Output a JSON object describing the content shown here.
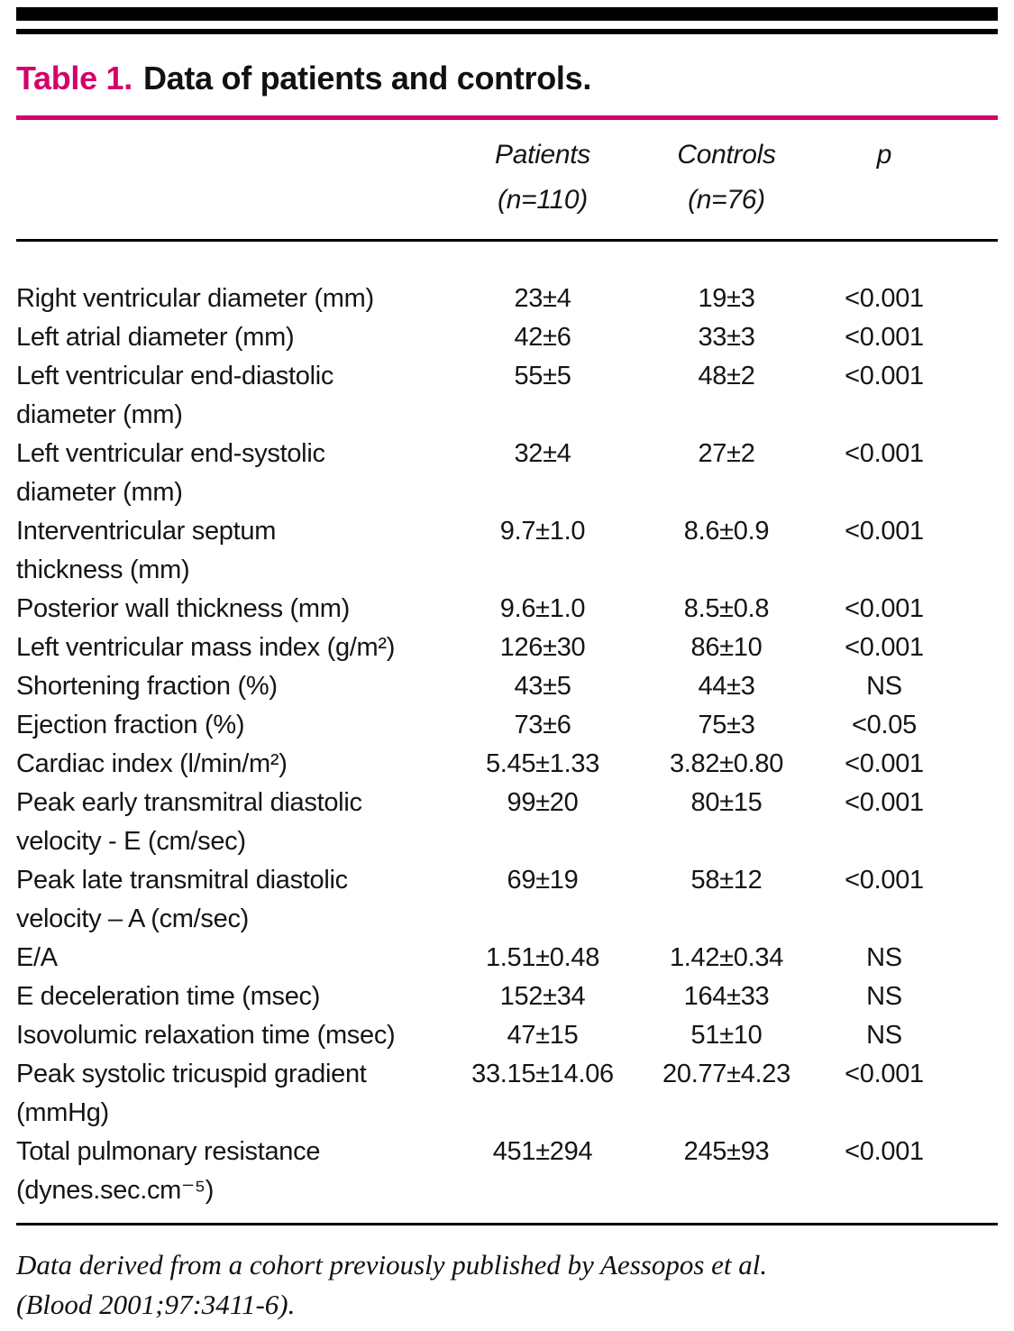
{
  "page": {
    "background_color": "#ffffff",
    "accent_color": "#d4006b",
    "text_color": "#151515"
  },
  "title": {
    "label": "Table 1.",
    "text": "Data of patients and controls."
  },
  "chart_data": {
    "type": "table",
    "title": "Table 1. Data of patients and controls.",
    "columns": [
      {
        "name": "Patients",
        "sub": "(n=110)"
      },
      {
        "name": "Controls",
        "sub": "(n=76)"
      },
      {
        "name": "p",
        "sub": ""
      }
    ],
    "rows": [
      {
        "label": "Right ventricular diameter (mm)",
        "patients": "23±4",
        "controls": "19±3",
        "p": "<0.001"
      },
      {
        "label": "Left atrial diameter (mm)",
        "patients": "42±6",
        "controls": "33±3",
        "p": "<0.001"
      },
      {
        "label": "Left ventricular end-diastolic\ndiameter (mm)",
        "patients": "55±5",
        "controls": "48±2",
        "p": "<0.001"
      },
      {
        "label": "Left ventricular end-systolic\ndiameter (mm)",
        "patients": "32±4",
        "controls": "27±2",
        "p": "<0.001"
      },
      {
        "label": "Interventricular septum\nthickness (mm)",
        "patients": "9.7±1.0",
        "controls": "8.6±0.9",
        "p": "<0.001"
      },
      {
        "label": "Posterior wall thickness (mm)",
        "patients": "9.6±1.0",
        "controls": "8.5±0.8",
        "p": "<0.001"
      },
      {
        "label": "Left ventricular mass index (g/m²)",
        "patients": "126±30",
        "controls": "86±10",
        "p": "<0.001"
      },
      {
        "label": "Shortening fraction (%)",
        "patients": "43±5",
        "controls": "44±3",
        "p": "NS"
      },
      {
        "label": "Ejection fraction (%)",
        "patients": "73±6",
        "controls": "75±3",
        "p": "<0.05"
      },
      {
        "label": "Cardiac index (l/min/m²)",
        "patients": "5.45±1.33",
        "controls": "3.82±0.80",
        "p": "<0.001"
      },
      {
        "label": "Peak early transmitral diastolic\nvelocity - E (cm/sec)",
        "patients": "99±20",
        "controls": "80±15",
        "p": "<0.001"
      },
      {
        "label": "Peak late transmitral diastolic\nvelocity – A (cm/sec)",
        "patients": "69±19",
        "controls": "58±12",
        "p": "<0.001"
      },
      {
        "label": "E/A",
        "patients": "1.51±0.48",
        "controls": "1.42±0.34",
        "p": "NS"
      },
      {
        "label": "E deceleration time (msec)",
        "patients": "152±34",
        "controls": "164±33",
        "p": "NS"
      },
      {
        "label": "Isovolumic relaxation time (msec)",
        "patients": "47±15",
        "controls": "51±10",
        "p": "NS"
      },
      {
        "label": "Peak systolic tricuspid gradient\n(mmHg)",
        "patients": "33.15±14.06",
        "controls": "20.77±4.23",
        "p": "<0.001"
      },
      {
        "label": "Total pulmonary resistance\n(dynes.sec.cm⁻⁵)",
        "patients": "451±294",
        "controls": "245±93",
        "p": "<0.001"
      }
    ]
  },
  "footnote": {
    "line1": "Data derived from a cohort previously published by Aessopos et al.",
    "line2": "(Blood 2001;97:3411-6)."
  }
}
